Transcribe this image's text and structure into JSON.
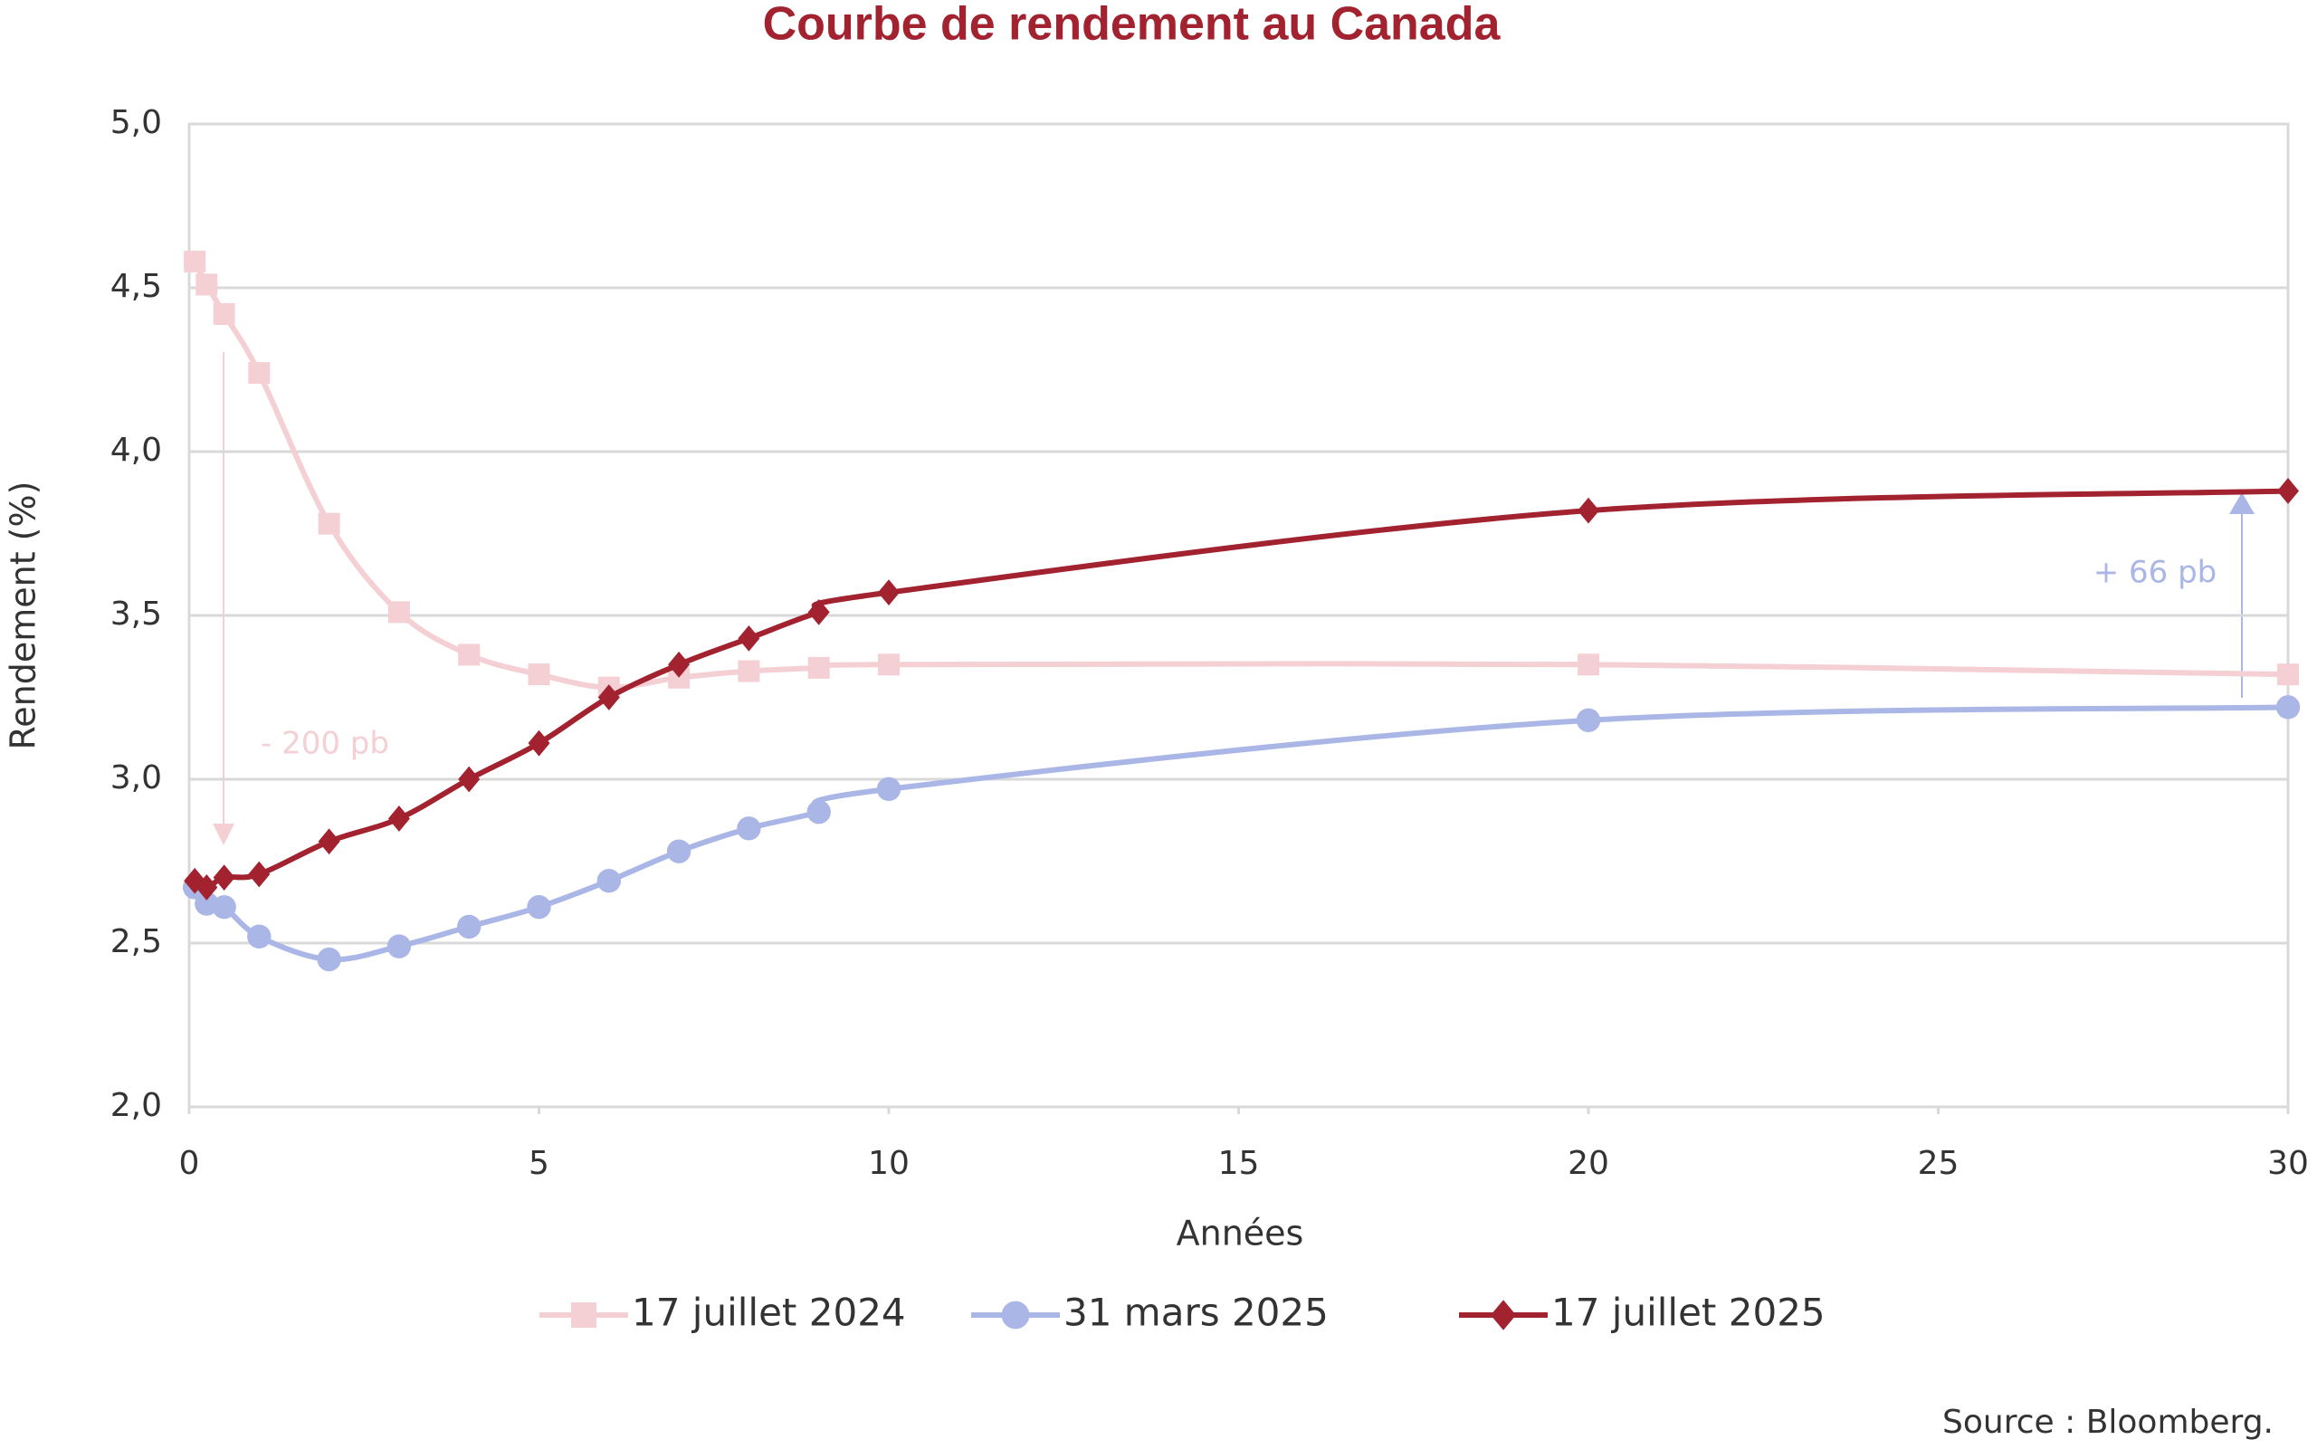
{
  "chart_data": {
    "type": "line",
    "title": "Courbe de rendement au Canada",
    "x_label": "Années",
    "y_label": "Rendement (%)",
    "x": [
      0.08,
      0.25,
      0.5,
      1,
      2,
      3,
      4,
      5,
      6,
      7,
      8,
      9,
      10,
      20,
      30
    ],
    "series": [
      {
        "name": "17 juillet 2024",
        "color": "#f4cfd3",
        "marker": "square",
        "values": [
          4.58,
          4.51,
          4.42,
          4.24,
          3.78,
          3.51,
          3.38,
          3.32,
          3.28,
          3.31,
          3.33,
          3.34,
          3.35,
          3.35,
          3.32
        ]
      },
      {
        "name": "31 mars 2025",
        "color": "#a9b6e6",
        "marker": "circle",
        "values": [
          2.67,
          2.62,
          2.61,
          2.52,
          2.45,
          2.49,
          2.55,
          2.61,
          2.69,
          2.78,
          2.85,
          2.9,
          2.97,
          3.18,
          3.22
        ]
      },
      {
        "name": "17 juillet 2025",
        "color": "#a3222f",
        "marker": "diamond",
        "values": [
          2.69,
          2.67,
          2.7,
          2.71,
          2.81,
          2.88,
          3.0,
          3.11,
          3.25,
          3.35,
          3.43,
          3.51,
          3.57,
          3.82,
          3.88
        ]
      }
    ],
    "xlim": [
      0,
      30
    ],
    "xticks": [
      0,
      5,
      10,
      15,
      20,
      25,
      30
    ],
    "ylim": [
      2,
      5
    ],
    "yticks": [
      {
        "value": 2,
        "label": "2,0"
      },
      {
        "value": 2.5,
        "label": "2,5"
      },
      {
        "value": 3,
        "label": "3,0"
      },
      {
        "value": 3.5,
        "label": "3,5"
      },
      {
        "value": 4,
        "label": "4,0"
      },
      {
        "value": 4.5,
        "label": "4,5"
      },
      {
        "value": 5,
        "label": "5,0"
      }
    ],
    "grid": true,
    "annotations": [
      "- 200 pb",
      "+ 66 pb"
    ],
    "source": "Source : Bloomberg."
  }
}
